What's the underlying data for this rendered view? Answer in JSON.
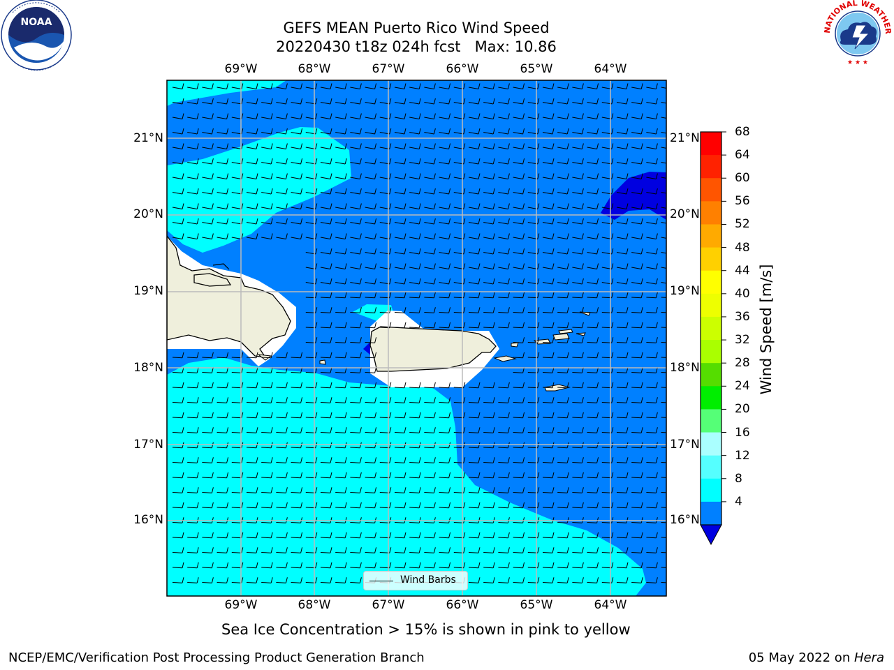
{
  "header": {
    "title_line1": "GEFS MEAN Puerto Rico Wind Speed",
    "title_line2": "20220430 t18z 024h fcst   Max: 10.86"
  },
  "map": {
    "lon_labels": [
      "69°W",
      "68°W",
      "67°W",
      "66°W",
      "65°W",
      "64°W"
    ],
    "lat_labels": [
      "21°N",
      "20°N",
      "19°N",
      "18°N",
      "17°N",
      "16°N"
    ],
    "ocean_low_color": "#0080ff",
    "ocean_mid_color": "#00ffff",
    "calm_color": "#0000e0",
    "land_color": "#efefdc",
    "legend_label": "Wind Barbs"
  },
  "colorbar": {
    "label": "Wind Speed [m/s]",
    "ticks": [
      "68",
      "64",
      "60",
      "56",
      "52",
      "48",
      "44",
      "40",
      "36",
      "32",
      "28",
      "24",
      "20",
      "16",
      "12",
      "8",
      "4"
    ],
    "colors": [
      "#ff0000",
      "#ff2200",
      "#ff5500",
      "#ff8000",
      "#ffaa00",
      "#ffd000",
      "#ffff00",
      "#eeff00",
      "#ccff00",
      "#aaff00",
      "#55dd00",
      "#00ee00",
      "#55ff77",
      "#aaffff",
      "#55ffff",
      "#00ffff",
      "#0080ff"
    ],
    "under_color": "#0000e0"
  },
  "footer": {
    "note": "Sea Ice Concentration > 15% is shown in pink to yellow",
    "credit": "NCEP/EMC/Verification Post Processing Product Generation Branch",
    "date": "05 May 2022 on ",
    "machine": "Hera"
  },
  "logos": {
    "noaa_text": "NOAA",
    "nws_text": "NATIONAL WEATHER SERVICE"
  }
}
